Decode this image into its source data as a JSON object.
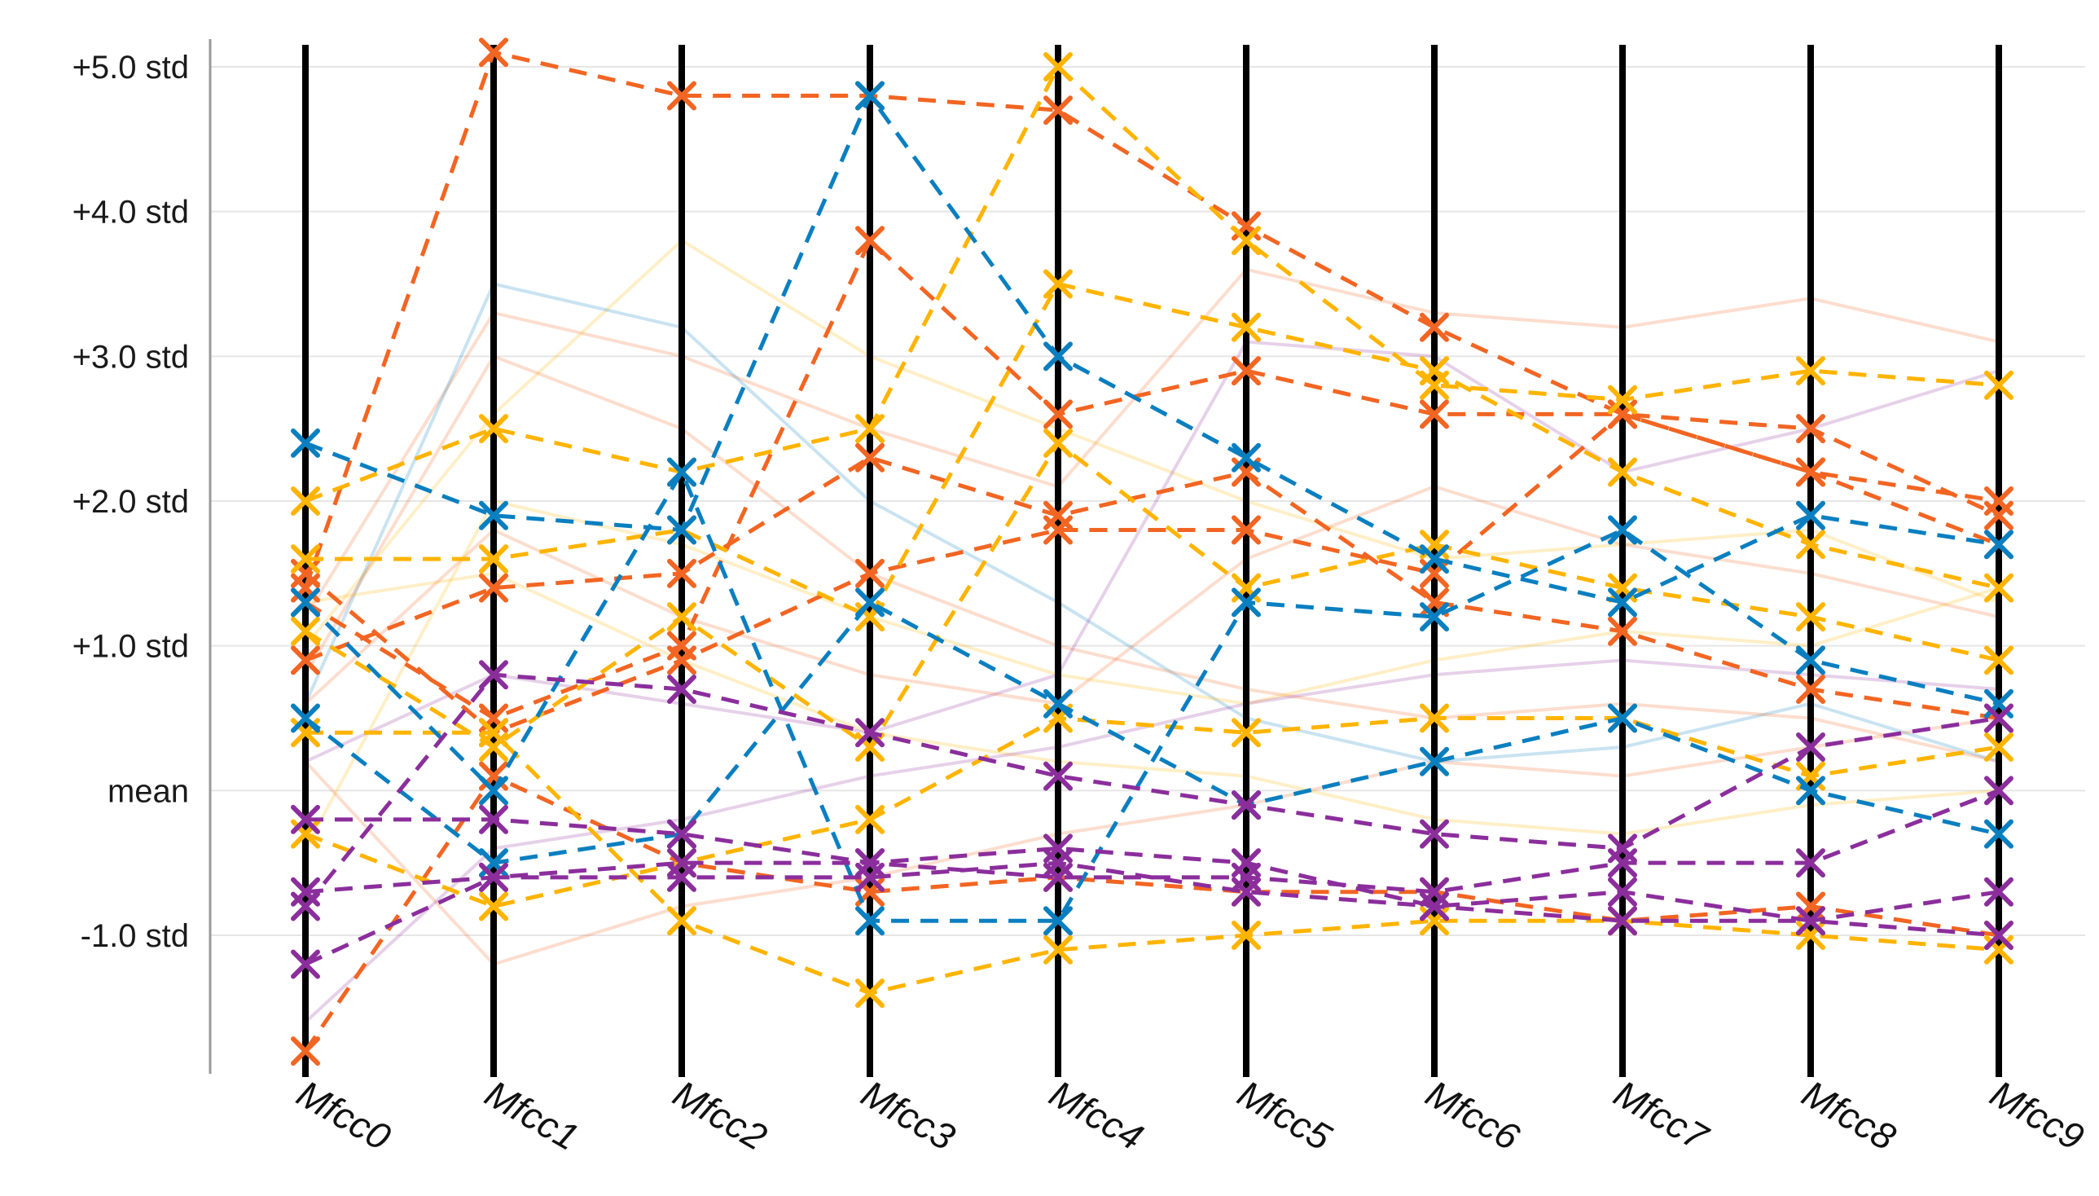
{
  "chart_data": {
    "type": "parallel-coordinates",
    "title": "",
    "axes": [
      "Mfcc0",
      "Mfcc1",
      "Mfcc2",
      "Mfcc3",
      "Mfcc4",
      "Mfcc5",
      "Mfcc6",
      "Mfcc7",
      "Mfcc8",
      "Mfcc9"
    ],
    "y_ticks": [
      {
        "value": 5,
        "label": "+5.0 std"
      },
      {
        "value": 4,
        "label": "+4.0 std"
      },
      {
        "value": 3,
        "label": "+3.0 std"
      },
      {
        "value": 2,
        "label": "+2.0 std"
      },
      {
        "value": 1,
        "label": "+1.0 std"
      },
      {
        "value": 0,
        "label": "mean"
      },
      {
        "value": -1,
        "label": "-1.0 std"
      }
    ],
    "ylim": [
      -1.95,
      5.35
    ],
    "grid": true,
    "colors": {
      "orange": "#f26522",
      "gold": "#ffb400",
      "blue": "#0a7fc0",
      "purple": "#8b2e9c",
      "axis": "#000000",
      "grid": "#e6e6e6"
    },
    "highlighted_series": [
      {
        "name": "orange-1",
        "color": "orange",
        "values": [
          1.4,
          5.1,
          4.8,
          4.8,
          4.7,
          3.9,
          3.2,
          2.6,
          2.5,
          1.9
        ]
      },
      {
        "name": "orange-2",
        "color": "orange",
        "values": [
          1.3,
          0.5,
          1.0,
          3.8,
          2.6,
          2.9,
          2.6,
          2.6,
          2.2,
          2.0
        ]
      },
      {
        "name": "orange-3",
        "color": "orange",
        "values": [
          0.9,
          1.4,
          1.5,
          2.3,
          1.9,
          2.2,
          1.3,
          1.1,
          0.7,
          0.5
        ]
      },
      {
        "name": "orange-4",
        "color": "orange",
        "values": [
          -1.8,
          0.1,
          -0.5,
          -0.7,
          -0.6,
          -0.7,
          -0.7,
          -0.9,
          -0.8,
          -1.0
        ]
      },
      {
        "name": "orange-5",
        "color": "orange",
        "values": [
          1.5,
          0.4,
          0.9,
          1.5,
          1.8,
          1.8,
          1.5,
          2.6,
          2.2,
          1.7
        ]
      },
      {
        "name": "gold-1",
        "color": "gold",
        "values": [
          2.0,
          2.5,
          2.2,
          2.5,
          5.0,
          3.8,
          2.8,
          2.7,
          2.9,
          2.8
        ]
      },
      {
        "name": "gold-2",
        "color": "gold",
        "values": [
          1.6,
          1.6,
          1.8,
          1.2,
          3.5,
          3.2,
          2.9,
          2.2,
          1.7,
          1.4
        ]
      },
      {
        "name": "gold-3",
        "color": "gold",
        "values": [
          0.4,
          0.4,
          -0.9,
          -1.4,
          -1.1,
          -1.0,
          -0.9,
          -0.9,
          -1.0,
          -1.1
        ]
      },
      {
        "name": "gold-4",
        "color": "gold",
        "values": [
          1.1,
          0.3,
          1.2,
          0.3,
          2.4,
          1.4,
          1.7,
          1.4,
          1.2,
          0.9
        ]
      },
      {
        "name": "gold-5",
        "color": "gold",
        "values": [
          -0.3,
          -0.8,
          -0.5,
          -0.2,
          0.5,
          0.4,
          0.5,
          0.5,
          0.1,
          0.3
        ]
      },
      {
        "name": "blue-1",
        "color": "blue",
        "values": [
          2.4,
          1.9,
          1.8,
          4.8,
          3.0,
          2.3,
          1.6,
          1.3,
          1.9,
          1.7
        ]
      },
      {
        "name": "blue-2",
        "color": "blue",
        "values": [
          1.3,
          0.0,
          2.2,
          -0.9,
          -0.9,
          1.3,
          1.2,
          1.8,
          0.9,
          0.6
        ]
      },
      {
        "name": "blue-3",
        "color": "blue",
        "values": [
          0.5,
          -0.5,
          -0.3,
          1.3,
          0.6,
          -0.1,
          0.2,
          0.5,
          0.0,
          -0.3
        ]
      },
      {
        "name": "purple-1",
        "color": "purple",
        "values": [
          -0.8,
          0.8,
          0.7,
          0.4,
          0.1,
          -0.1,
          -0.3,
          -0.4,
          0.3,
          0.5
        ]
      },
      {
        "name": "purple-2",
        "color": "purple",
        "values": [
          -1.2,
          -0.6,
          -0.6,
          -0.6,
          -0.5,
          -0.7,
          -0.8,
          -0.9,
          -0.9,
          -0.7
        ]
      },
      {
        "name": "purple-3",
        "color": "purple",
        "values": [
          -0.2,
          -0.2,
          -0.3,
          -0.5,
          -0.6,
          -0.6,
          -0.7,
          -0.5,
          -0.5,
          0.0
        ]
      },
      {
        "name": "purple-4",
        "color": "purple",
        "values": [
          -0.7,
          -0.6,
          -0.5,
          -0.5,
          -0.4,
          -0.5,
          -0.8,
          -0.7,
          -0.9,
          -1.0
        ]
      }
    ],
    "faded_series": [
      {
        "name": "faded-orange-1",
        "color": "orange",
        "values": [
          1.2,
          3.3,
          3.0,
          2.5,
          2.1,
          3.6,
          3.3,
          3.2,
          3.4,
          3.1
        ]
      },
      {
        "name": "faded-gold-1",
        "color": "gold",
        "values": [
          1.0,
          2.6,
          3.8,
          3.0,
          2.5,
          2.0,
          1.6,
          1.7,
          1.8,
          1.3
        ]
      },
      {
        "name": "faded-blue-1",
        "color": "blue",
        "values": [
          0.6,
          3.5,
          3.2,
          2.0,
          1.3,
          0.5,
          0.2,
          0.3,
          0.6,
          0.2
        ]
      },
      {
        "name": "faded-orange-2",
        "color": "orange",
        "values": [
          0.8,
          3.0,
          2.5,
          1.5,
          1.0,
          0.7,
          0.5,
          0.6,
          0.5,
          0.2
        ]
      },
      {
        "name": "faded-purple-1",
        "color": "purple",
        "values": [
          0.2,
          0.8,
          0.6,
          0.4,
          0.8,
          3.1,
          3.0,
          2.2,
          2.5,
          2.9
        ]
      },
      {
        "name": "faded-gold-2",
        "color": "gold",
        "values": [
          -0.4,
          2.0,
          1.7,
          1.2,
          0.8,
          0.6,
          0.9,
          1.1,
          1.0,
          1.4
        ]
      },
      {
        "name": "faded-orange-3",
        "color": "orange",
        "values": [
          0.2,
          -1.2,
          -0.8,
          -0.6,
          -0.3,
          -0.1,
          0.2,
          0.1,
          0.3,
          0.5
        ]
      },
      {
        "name": "faded-gold-3",
        "color": "gold",
        "values": [
          1.3,
          1.5,
          0.9,
          0.4,
          0.2,
          0.1,
          -0.2,
          -0.3,
          -0.1,
          0.0
        ]
      },
      {
        "name": "faded-purple-2",
        "color": "purple",
        "values": [
          -1.6,
          -0.4,
          -0.2,
          0.1,
          0.3,
          0.6,
          0.8,
          0.9,
          0.8,
          0.7
        ]
      },
      {
        "name": "faded-orange-4",
        "color": "orange",
        "values": [
          0.6,
          1.8,
          1.2,
          0.8,
          0.6,
          1.6,
          2.1,
          1.7,
          1.5,
          1.2
        ]
      }
    ]
  }
}
